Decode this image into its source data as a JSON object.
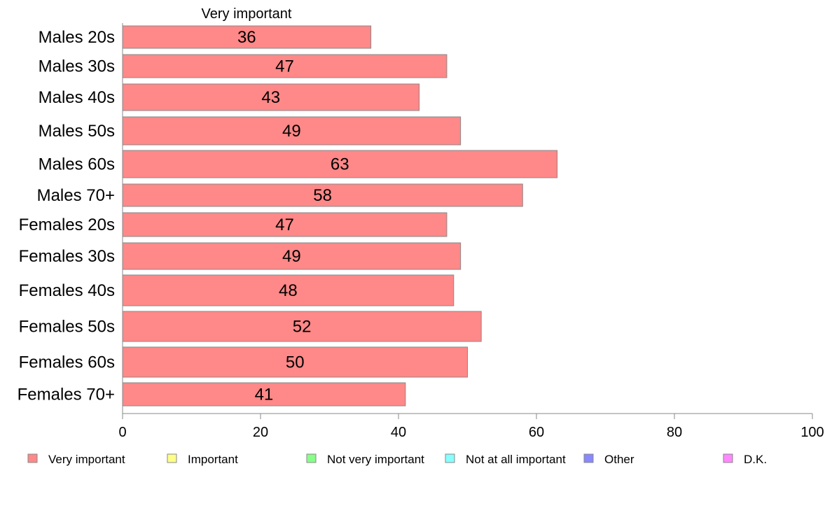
{
  "chart_data": {
    "type": "bar",
    "orientation": "horizontal",
    "title": "Very important",
    "categories": [
      "Males 20s",
      "Males 30s",
      "Males 40s",
      "Males 50s",
      "Males 60s",
      "Males 70+",
      "Females 20s",
      "Females 30s",
      "Females 40s",
      "Females 50s",
      "Females 60s",
      "Females 70+"
    ],
    "series": [
      {
        "name": "Very important",
        "values": [
          36,
          47,
          43,
          49,
          63,
          58,
          47,
          49,
          48,
          52,
          50,
          41
        ]
      }
    ],
    "xlim": [
      0,
      100
    ],
    "xticks": [
      0,
      20,
      40,
      60,
      80,
      100
    ],
    "grid": false,
    "legend": {
      "placement": "bottom",
      "items": [
        {
          "label": "Very important",
          "color": "#ff8888"
        },
        {
          "label": "Important",
          "color": "#ffff88"
        },
        {
          "label": "Not very important",
          "color": "#88ff88"
        },
        {
          "label": "Not at all important",
          "color": "#88ffff"
        },
        {
          "label": "Other",
          "color": "#8888ff"
        },
        {
          "label": "D.K.",
          "color": "#ff88ff"
        }
      ]
    },
    "bar_color": "#ff8888",
    "bar_edge_color": "#888888"
  }
}
